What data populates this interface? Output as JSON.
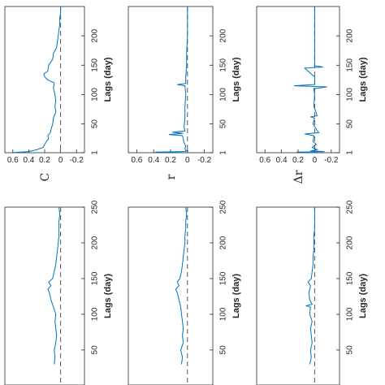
{
  "chart_data": [
    {
      "type": "line",
      "panel": "right-top",
      "xlabel": "Lags (day)",
      "ylabel": "C",
      "xlim": [
        1,
        250
      ],
      "ylim": [
        -0.3,
        0.7
      ],
      "xticks": [
        "1",
        "50",
        "100",
        "150",
        "200"
      ],
      "yticks": [
        "0.6",
        "0.4",
        "0.2",
        "0",
        "-0.2"
      ],
      "reference_line": {
        "y": 0,
        "style": "dashed"
      },
      "color": "#0072bd",
      "series": [
        {
          "x": [
            1,
            3,
            6,
            10,
            15,
            20,
            25,
            30,
            35,
            40,
            50,
            60,
            70,
            80,
            90,
            100,
            110,
            120,
            125,
            130,
            135,
            140,
            150,
            160,
            170,
            180,
            190,
            200,
            210,
            220,
            230,
            240,
            250
          ],
          "y": [
            0.62,
            0.4,
            0.3,
            0.22,
            0.2,
            0.18,
            0.15,
            0.16,
            0.13,
            0.12,
            0.1,
            0.09,
            0.06,
            0.07,
            0.06,
            0.07,
            0.09,
            0.08,
            0.16,
            0.2,
            0.21,
            0.16,
            0.15,
            0.1,
            0.09,
            0.05,
            0.04,
            0.03,
            0.02,
            0.01,
            0.01,
            0.0,
            0.0
          ]
        }
      ]
    },
    {
      "type": "line",
      "panel": "right-middle",
      "xlabel": "Lags (day)",
      "ylabel": "r",
      "xlim": [
        1,
        250
      ],
      "ylim": [
        -0.3,
        0.7
      ],
      "xticks": [
        "1",
        "50",
        "100",
        "150",
        "200"
      ],
      "yticks": [
        "0.6",
        "0.4",
        "0.2",
        "0",
        "-0.2"
      ],
      "reference_line": {
        "y": 0,
        "style": "dashed"
      },
      "color": "#0072bd",
      "series": [
        {
          "x": [
            1,
            2,
            3,
            4,
            5,
            8,
            12,
            18,
            25,
            30,
            32,
            34,
            36,
            38,
            45,
            60,
            80,
            100,
            115,
            117,
            119,
            130,
            150,
            170,
            200,
            230,
            250
          ],
          "y": [
            0.02,
            0.38,
            0.05,
            -0.01,
            0.02,
            0.03,
            0.02,
            0.04,
            0.05,
            0.06,
            0.22,
            0.05,
            0.18,
            0.03,
            0.04,
            0.03,
            0.03,
            0.02,
            0.03,
            0.12,
            0.02,
            0.02,
            0.01,
            0.01,
            0.0,
            0.0,
            0.0
          ]
        }
      ]
    },
    {
      "type": "line",
      "panel": "right-bottom",
      "xlabel": "Lags (day)",
      "ylabel": "Δr",
      "xlim": [
        1,
        250
      ],
      "ylim": [
        -0.3,
        0.7
      ],
      "xticks": [
        "1",
        "50",
        "100",
        "150",
        "200"
      ],
      "yticks": [
        "0.6",
        "0.4",
        "0.2",
        "0",
        "-0.2"
      ],
      "reference_line": {
        "y": 0,
        "style": "dashed"
      },
      "color": "#0072bd",
      "series": [
        {
          "x": [
            1,
            2,
            3,
            4,
            6,
            10,
            15,
            20,
            30,
            33,
            35,
            50,
            60,
            62,
            64,
            80,
            100,
            110,
            113,
            115,
            117,
            130,
            145,
            147,
            149,
            170,
            200,
            230,
            250
          ],
          "y": [
            0.0,
            0.22,
            -0.12,
            0.05,
            -0.03,
            0.03,
            -0.02,
            0.02,
            0.01,
            0.12,
            -0.05,
            0.02,
            0.0,
            0.05,
            -0.03,
            0.01,
            0.0,
            0.01,
            -0.15,
            0.25,
            0.0,
            0.0,
            0.12,
            -0.1,
            0.0,
            0.0,
            0.0,
            0.0,
            0.0
          ]
        }
      ]
    },
    {
      "type": "line",
      "panel": "left-top",
      "xlabel": "Lags (day)",
      "ylabel": "",
      "xlim": [
        1,
        250
      ],
      "ylim": [
        -0.3,
        0.7
      ],
      "xticks": [
        "50",
        "100",
        "150",
        "200",
        "250"
      ],
      "yticks": [],
      "reference_line": {
        "y": 0,
        "style": "dashed"
      },
      "color": "#0072bd",
      "series": [
        {
          "x": [
            30,
            40,
            50,
            60,
            70,
            80,
            90,
            100,
            110,
            120,
            130,
            135,
            140,
            145,
            150,
            160,
            170,
            180,
            190,
            200,
            210,
            220,
            230,
            240,
            250
          ],
          "y": [
            0.08,
            0.07,
            0.08,
            0.06,
            0.05,
            0.06,
            0.07,
            0.06,
            0.09,
            0.12,
            0.14,
            0.16,
            0.12,
            0.15,
            0.1,
            0.08,
            0.06,
            0.05,
            0.04,
            0.03,
            0.02,
            0.02,
            0.02,
            0.01,
            0.02
          ]
        }
      ]
    },
    {
      "type": "line",
      "panel": "left-middle",
      "xlabel": "Lags (day)",
      "ylabel": "",
      "xlim": [
        1,
        250
      ],
      "ylim": [
        -0.3,
        0.7
      ],
      "xticks": [
        "50",
        "100",
        "150",
        "200",
        "250"
      ],
      "yticks": [],
      "reference_line": {
        "y": 0,
        "style": "dashed"
      },
      "color": "#0072bd",
      "series": [
        {
          "x": [
            30,
            40,
            50,
            60,
            70,
            80,
            90,
            100,
            110,
            120,
            130,
            135,
            140,
            145,
            150,
            160,
            170,
            180,
            190,
            200,
            210,
            220,
            230,
            240,
            250
          ],
          "y": [
            0.07,
            0.06,
            0.08,
            0.05,
            0.06,
            0.05,
            0.06,
            0.07,
            0.08,
            0.1,
            0.12,
            0.14,
            0.1,
            0.12,
            0.09,
            0.07,
            0.06,
            0.05,
            0.04,
            0.03,
            0.03,
            0.02,
            0.02,
            0.01,
            0.02
          ]
        }
      ]
    },
    {
      "type": "line",
      "panel": "left-bottom",
      "xlabel": "Lags (day)",
      "ylabel": "",
      "xlim": [
        1,
        250
      ],
      "ylim": [
        -0.3,
        0.7
      ],
      "xticks": [
        "50",
        "100",
        "150",
        "200",
        "250"
      ],
      "yticks": [],
      "reference_line": {
        "y": 0,
        "style": "dashed"
      },
      "color": "#0072bd",
      "series": [
        {
          "x": [
            30,
            40,
            50,
            60,
            70,
            80,
            90,
            100,
            110,
            112,
            114,
            120,
            130,
            140,
            145,
            150,
            160,
            170,
            180,
            190,
            200,
            210,
            220,
            230,
            240,
            250
          ],
          "y": [
            0.06,
            0.04,
            0.05,
            0.03,
            0.04,
            0.05,
            0.03,
            0.06,
            0.05,
            0.1,
            0.03,
            0.06,
            0.07,
            0.05,
            0.08,
            0.04,
            0.03,
            0.02,
            0.02,
            0.01,
            0.01,
            0.01,
            0.0,
            0.0,
            0.0,
            0.0
          ]
        }
      ]
    }
  ]
}
